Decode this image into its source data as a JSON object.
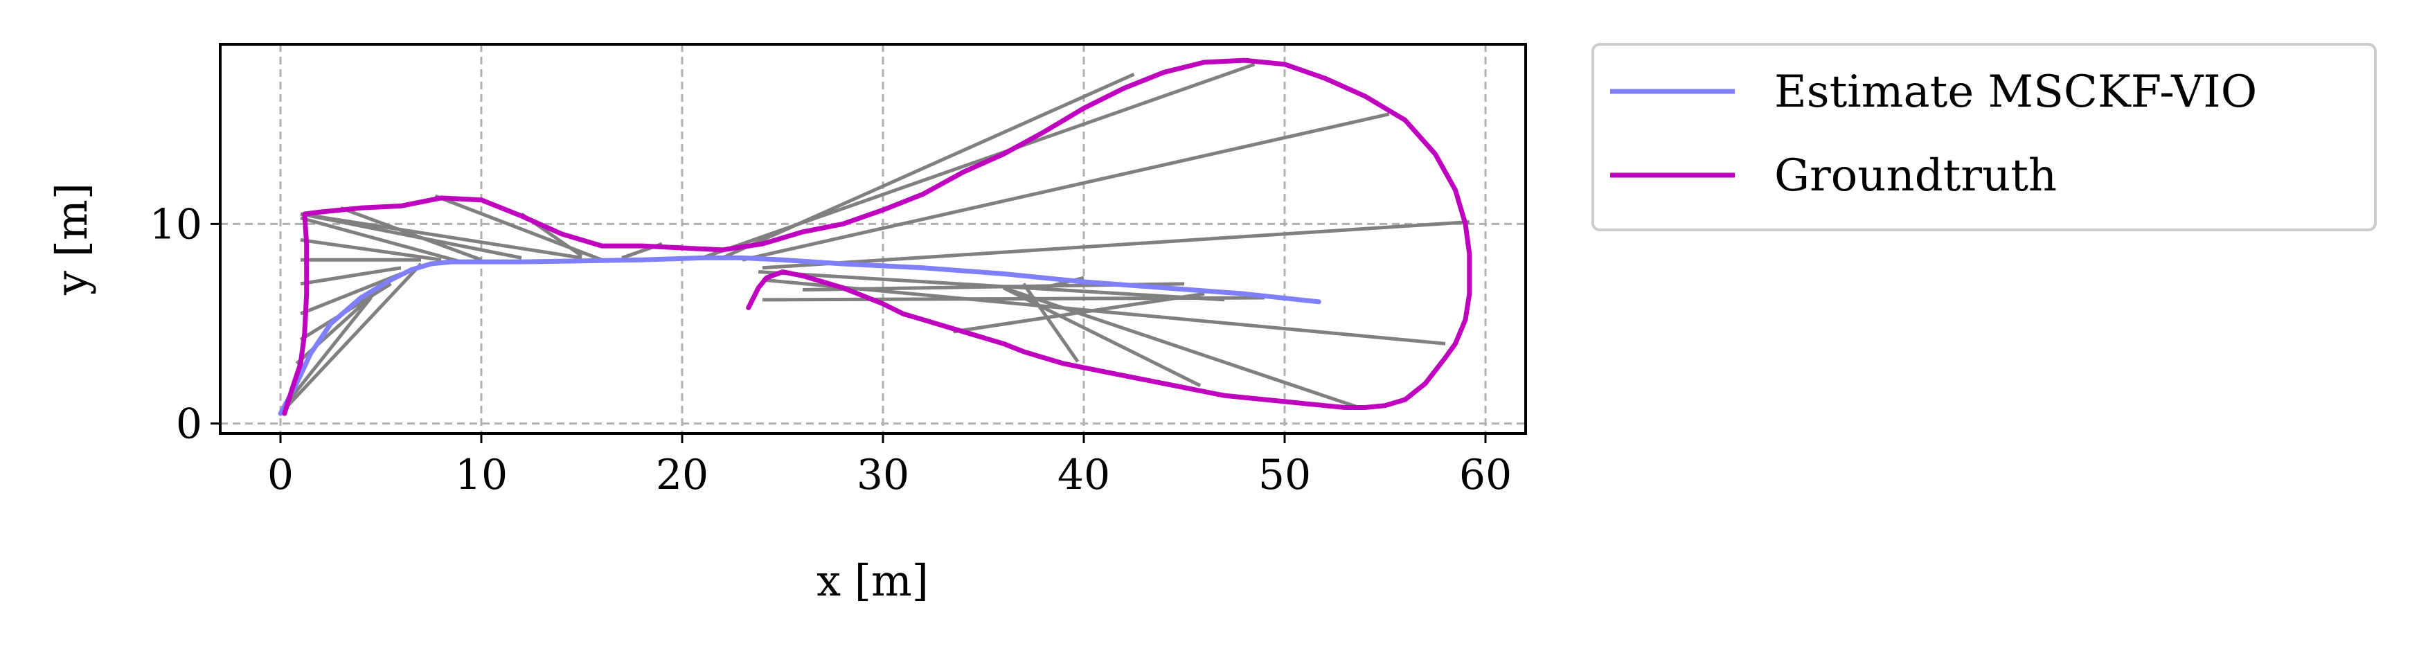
{
  "chart_data": {
    "type": "line",
    "title": "",
    "xlabel": "x [m]",
    "ylabel": "y [m]",
    "xlim": [
      -3,
      62
    ],
    "ylim": [
      -0.5,
      19
    ],
    "xticks": [
      0,
      10,
      20,
      30,
      40,
      50,
      60
    ],
    "yticks": [
      0,
      10
    ],
    "grid": true,
    "legend_position": "outside-upper-right",
    "colors": {
      "estimate": "#8080ff",
      "groundtruth": "#bf00bf",
      "correspondence": "#808080"
    },
    "series": [
      {
        "name": "Estimate MSCKF-VIO",
        "x": [
          0,
          0.8,
          1.5,
          2.5,
          4,
          5.5,
          6.5,
          7.5,
          8.5,
          10,
          12,
          15,
          18,
          21,
          23,
          25,
          28,
          32,
          36,
          40,
          44,
          48,
          51.7
        ],
        "y": [
          0.5,
          2,
          3.5,
          5,
          6.3,
          7.2,
          7.7,
          8,
          8.1,
          8.1,
          8.1,
          8.15,
          8.2,
          8.3,
          8.3,
          8.2,
          8.0,
          7.8,
          7.5,
          7.1,
          6.8,
          6.5,
          6.1
        ]
      },
      {
        "name": "Groundtruth",
        "x": [
          23.3,
          23.5,
          23.8,
          24.2,
          25,
          26,
          27,
          28,
          29,
          30,
          31,
          32,
          33,
          34,
          35,
          36,
          37,
          38,
          39,
          40,
          41,
          42,
          43,
          44,
          45,
          46,
          47,
          48,
          49,
          50,
          51,
          52,
          53,
          54,
          55,
          56,
          57,
          58,
          58.5,
          59,
          59.2,
          59.2,
          59,
          58.5,
          57.5,
          56,
          54,
          52,
          50,
          48,
          46,
          44,
          42,
          40,
          38,
          36,
          34,
          32,
          30,
          28,
          26,
          24,
          22,
          20,
          18,
          16,
          14,
          12,
          10,
          8,
          6,
          4,
          2,
          1.2,
          1.3,
          1.3,
          1.2,
          1.0,
          0.6,
          0.2
        ],
        "y": [
          5.8,
          6.2,
          6.8,
          7.3,
          7.6,
          7.4,
          7.1,
          6.8,
          6.4,
          6.0,
          5.5,
          5.2,
          4.9,
          4.6,
          4.3,
          4.0,
          3.6,
          3.3,
          3.0,
          2.8,
          2.6,
          2.4,
          2.2,
          2.0,
          1.8,
          1.6,
          1.4,
          1.3,
          1.2,
          1.1,
          1.0,
          0.9,
          0.8,
          0.8,
          0.9,
          1.2,
          2.0,
          3.3,
          4.0,
          5.2,
          6.5,
          8.5,
          10.0,
          11.7,
          13.5,
          15.2,
          16.4,
          17.3,
          18.0,
          18.2,
          18.1,
          17.6,
          16.8,
          15.8,
          14.6,
          13.5,
          12.6,
          11.5,
          10.7,
          10.0,
          9.6,
          9.0,
          8.7,
          8.8,
          8.9,
          8.9,
          9.5,
          10.4,
          11.2,
          11.3,
          10.9,
          10.8,
          10.6,
          10.5,
          9.0,
          6.5,
          4.5,
          3.0,
          1.8,
          0.5
        ]
      }
    ],
    "correspondence_lines": [
      [
        [
          1,
          10.5
        ],
        [
          12,
          8.3
        ]
      ],
      [
        [
          1,
          10.5
        ],
        [
          15,
          8.3
        ]
      ],
      [
        [
          1,
          10.3
        ],
        [
          9,
          8.1
        ]
      ],
      [
        [
          1,
          9.2
        ],
        [
          8,
          8.2
        ]
      ],
      [
        [
          1,
          8.2
        ],
        [
          7,
          8.2
        ]
      ],
      [
        [
          1,
          7.0
        ],
        [
          6,
          7.8
        ]
      ],
      [
        [
          1,
          5.5
        ],
        [
          6,
          7.5
        ]
      ],
      [
        [
          1,
          4.2
        ],
        [
          5.5,
          7.0
        ]
      ],
      [
        [
          0.8,
          3.0
        ],
        [
          5,
          6.8
        ]
      ],
      [
        [
          0.3,
          1.0
        ],
        [
          4.5,
          6.3
        ]
      ],
      [
        [
          0,
          0.5
        ],
        [
          7,
          8.0
        ]
      ],
      [
        [
          3,
          10.8
        ],
        [
          10,
          8.2
        ]
      ],
      [
        [
          7.7,
          11.4
        ],
        [
          16,
          8.2
        ]
      ],
      [
        [
          12,
          10.5
        ],
        [
          15,
          8.4
        ]
      ],
      [
        [
          17,
          8.3
        ],
        [
          19,
          9.0
        ]
      ],
      [
        [
          21,
          8.3
        ],
        [
          48.5,
          18
        ]
      ],
      [
        [
          22,
          8.3
        ],
        [
          42.5,
          17.5
        ]
      ],
      [
        [
          23,
          8.2
        ],
        [
          55.2,
          15.5
        ]
      ],
      [
        [
          24,
          7.8
        ],
        [
          59.2,
          10.1
        ]
      ],
      [
        [
          23.8,
          7.6
        ],
        [
          47,
          6.2
        ]
      ],
      [
        [
          24,
          6.2
        ],
        [
          49,
          6.3
        ]
      ],
      [
        [
          26,
          6.7
        ],
        [
          45,
          7.0
        ]
      ],
      [
        [
          24,
          7.2
        ],
        [
          58,
          4.0
        ]
      ],
      [
        [
          33.5,
          4.6
        ],
        [
          46,
          6.5
        ]
      ],
      [
        [
          36,
          6.8
        ],
        [
          53.7,
          0.8
        ]
      ],
      [
        [
          36,
          6.8
        ],
        [
          45.8,
          1.9
        ]
      ],
      [
        [
          37,
          7.0
        ],
        [
          39.7,
          3.1
        ]
      ],
      [
        [
          38,
          6.8
        ],
        [
          40,
          7.3
        ]
      ]
    ]
  }
}
